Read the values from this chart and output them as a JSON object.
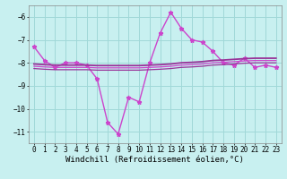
{
  "background_color": "#c8f0f0",
  "grid_color": "#a0d8d8",
  "xlabel": "Windchill (Refroidissement éolien,°C)",
  "xlabel_fontsize": 6.5,
  "tick_fontsize": 5.5,
  "xlim": [
    -0.5,
    23.5
  ],
  "ylim": [
    -11.5,
    -5.5
  ],
  "yticks": [
    -11,
    -10,
    -9,
    -8,
    -7,
    -6
  ],
  "xticks": [
    0,
    1,
    2,
    3,
    4,
    5,
    6,
    7,
    8,
    9,
    10,
    11,
    12,
    13,
    14,
    15,
    16,
    17,
    18,
    19,
    20,
    21,
    22,
    23
  ],
  "series": [
    {
      "x": [
        0,
        1,
        2,
        3,
        4,
        5,
        6,
        7,
        8,
        9,
        10,
        11,
        12,
        13,
        14,
        15,
        16,
        17,
        18,
        19,
        20,
        21,
        22,
        23
      ],
      "y": [
        -7.3,
        -7.9,
        -8.2,
        -8.0,
        -8.0,
        -8.1,
        -8.7,
        -10.6,
        -11.1,
        -9.5,
        -9.7,
        -8.0,
        -6.7,
        -5.8,
        -6.5,
        -7.0,
        -7.1,
        -7.5,
        -8.0,
        -8.1,
        -7.8,
        -8.2,
        -8.1,
        -8.2
      ],
      "color": "#cc44cc",
      "lw": 1.0,
      "marker": "*",
      "ms": 3.5
    },
    {
      "x": [
        0,
        1,
        2,
        3,
        4,
        5,
        6,
        7,
        8,
        9,
        10,
        11,
        12,
        13,
        14,
        15,
        16,
        17,
        18,
        19,
        20,
        21,
        22,
        23
      ],
      "y": [
        -8.05,
        -8.08,
        -8.1,
        -8.1,
        -8.1,
        -8.1,
        -8.12,
        -8.12,
        -8.12,
        -8.12,
        -8.12,
        -8.1,
        -8.08,
        -8.05,
        -8.0,
        -7.98,
        -7.95,
        -7.9,
        -7.88,
        -7.85,
        -7.82,
        -7.8,
        -7.8,
        -7.8
      ],
      "color": "#993399",
      "lw": 1.3,
      "marker": null,
      "ms": 0
    },
    {
      "x": [
        0,
        1,
        2,
        3,
        4,
        5,
        6,
        7,
        8,
        9,
        10,
        11,
        12,
        13,
        14,
        15,
        16,
        17,
        18,
        19,
        20,
        21,
        22,
        23
      ],
      "y": [
        -8.15,
        -8.18,
        -8.2,
        -8.2,
        -8.2,
        -8.2,
        -8.22,
        -8.22,
        -8.22,
        -8.22,
        -8.22,
        -8.2,
        -8.18,
        -8.15,
        -8.1,
        -8.08,
        -8.05,
        -8.0,
        -7.98,
        -7.95,
        -7.92,
        -7.9,
        -7.9,
        -7.9
      ],
      "color": "#cc44cc",
      "lw": 0.9,
      "marker": null,
      "ms": 0
    },
    {
      "x": [
        0,
        1,
        2,
        3,
        4,
        5,
        6,
        7,
        8,
        9,
        10,
        11,
        12,
        13,
        14,
        15,
        16,
        17,
        18,
        19,
        20,
        21,
        22,
        23
      ],
      "y": [
        -8.25,
        -8.28,
        -8.3,
        -8.3,
        -8.3,
        -8.3,
        -8.32,
        -8.32,
        -8.32,
        -8.32,
        -8.32,
        -8.3,
        -8.28,
        -8.25,
        -8.2,
        -8.18,
        -8.15,
        -8.1,
        -8.08,
        -8.05,
        -8.02,
        -8.0,
        -8.0,
        -8.0
      ],
      "color": "#993399",
      "lw": 0.9,
      "marker": null,
      "ms": 0
    }
  ]
}
